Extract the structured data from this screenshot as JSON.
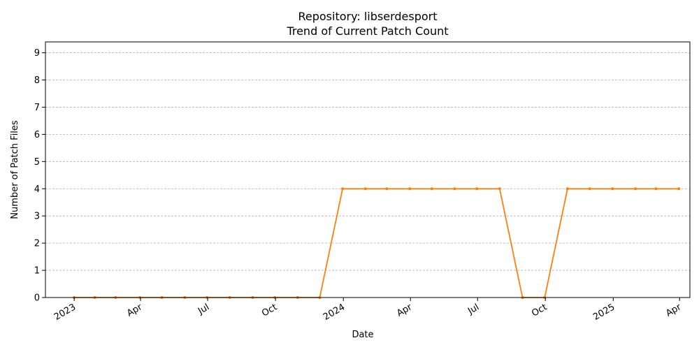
{
  "chart_data": {
    "type": "line",
    "title": "Repository: libserdesport",
    "subtitle": "Trend of Current Patch Count",
    "xlabel": "Date",
    "ylabel": "Number of Patch Files",
    "x_range": [
      "2022-11-23",
      "2025-04-15"
    ],
    "ylim": [
      0,
      9.4
    ],
    "y_ticks": [
      0,
      1,
      2,
      3,
      4,
      5,
      6,
      7,
      8,
      9
    ],
    "x_ticks": [
      {
        "date": "2023-01-01",
        "label": "2023"
      },
      {
        "date": "2023-04-01",
        "label": "Apr"
      },
      {
        "date": "2023-07-01",
        "label": "Jul"
      },
      {
        "date": "2023-10-01",
        "label": "Oct"
      },
      {
        "date": "2024-01-01",
        "label": "2024"
      },
      {
        "date": "2024-04-01",
        "label": "Apr"
      },
      {
        "date": "2024-07-01",
        "label": "Jul"
      },
      {
        "date": "2024-10-01",
        "label": "Oct"
      },
      {
        "date": "2025-01-01",
        "label": "2025"
      },
      {
        "date": "2025-04-01",
        "label": "Apr"
      }
    ],
    "grid": {
      "y": true,
      "x": false
    },
    "series": [
      {
        "color": "#ff7f0e",
        "x": [
          "2023-01-01",
          "2023-01-29",
          "2023-02-26",
          "2023-03-31",
          "2023-04-30",
          "2023-05-31",
          "2023-06-30",
          "2023-07-31",
          "2023-08-31",
          "2023-09-30",
          "2023-10-31",
          "2023-11-30",
          "2023-12-31",
          "2024-01-31",
          "2024-02-29",
          "2024-03-31",
          "2024-04-30",
          "2024-05-31",
          "2024-06-30",
          "2024-07-31",
          "2024-08-31",
          "2024-09-30",
          "2024-10-31",
          "2024-11-30",
          "2024-12-31",
          "2025-01-31",
          "2025-02-28",
          "2025-03-31"
        ],
        "values": [
          0,
          0,
          0,
          0,
          0,
          0,
          0,
          0,
          0,
          0,
          0,
          0,
          4,
          4,
          4,
          4,
          4,
          4,
          4,
          4,
          0,
          0,
          4,
          4,
          4,
          4,
          4,
          4
        ]
      }
    ]
  }
}
